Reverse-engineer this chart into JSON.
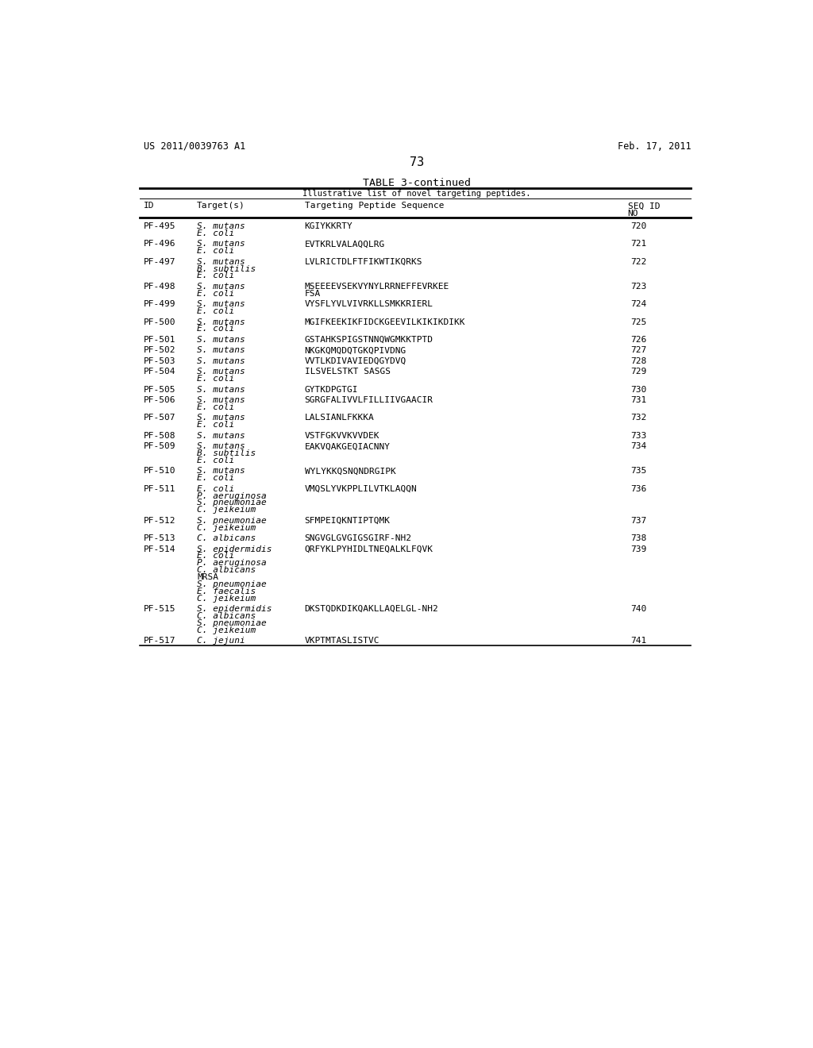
{
  "header_left": "US 2011/0039763 A1",
  "header_right": "Feb. 17, 2011",
  "page_number": "73",
  "table_title": "TABLE 3-continued",
  "table_subtitle": "Illustrative list of novel targeting peptides.",
  "rows": [
    {
      "id": "PF-495",
      "targets": [
        "S. mutans",
        "E. coli"
      ],
      "sequence": [
        "KGIYKKRTY"
      ],
      "seq_id": "720"
    },
    {
      "id": "PF-496",
      "targets": [
        "S. mutans",
        "E. coli"
      ],
      "sequence": [
        "EVTKRLVALAQQLRG"
      ],
      "seq_id": "721"
    },
    {
      "id": "PF-497",
      "targets": [
        "S. mutans",
        "B. subtilis",
        "E. coli"
      ],
      "sequence": [
        "LVLRICTDLFTFIKWTIKQRKS"
      ],
      "seq_id": "722"
    },
    {
      "id": "PF-498",
      "targets": [
        "S. mutans",
        "E. coli"
      ],
      "sequence": [
        "MSEEEEVSEKVYNYLRRNEFFEVRKEE",
        "FSA"
      ],
      "seq_id": "723"
    },
    {
      "id": "PF-499",
      "targets": [
        "S. mutans",
        "E. coli"
      ],
      "sequence": [
        "VYSFLYVLVIVRKLLSMKKRIERL"
      ],
      "seq_id": "724"
    },
    {
      "id": "PF-500",
      "targets": [
        "S. mutans",
        "E. coli"
      ],
      "sequence": [
        "MGIFKEEKIKFIDCKGEEVILKIKIKDIKK"
      ],
      "seq_id": "725"
    },
    {
      "id": "PF-501",
      "targets": [
        "S. mutans"
      ],
      "sequence": [
        "GSTAHKSPIGSTNNQWGMKKTPTD"
      ],
      "seq_id": "726"
    },
    {
      "id": "PF-502",
      "targets": [
        "S. mutans"
      ],
      "sequence": [
        "NKGKQMQDQTGKQPIVDNG"
      ],
      "seq_id": "727"
    },
    {
      "id": "PF-503",
      "targets": [
        "S. mutans"
      ],
      "sequence": [
        "VVTLKDIVAVIEDQGYDVQ"
      ],
      "seq_id": "728"
    },
    {
      "id": "PF-504",
      "targets": [
        "S. mutans",
        "E. coli"
      ],
      "sequence": [
        "ILSVELSTKT SASGS"
      ],
      "seq_id": "729"
    },
    {
      "id": "PF-505",
      "targets": [
        "S. mutans"
      ],
      "sequence": [
        "GYTKDPGTGI"
      ],
      "seq_id": "730"
    },
    {
      "id": "PF-506",
      "targets": [
        "S. mutans",
        "E. coli"
      ],
      "sequence": [
        "SGRGFALIVVLFILLIIVGAACIR"
      ],
      "seq_id": "731"
    },
    {
      "id": "PF-507",
      "targets": [
        "S. mutans",
        "E. coli"
      ],
      "sequence": [
        "LALSIANLFKKKA"
      ],
      "seq_id": "732"
    },
    {
      "id": "PF-508",
      "targets": [
        "S. mutans"
      ],
      "sequence": [
        "VSTFGKVVKVVDEK"
      ],
      "seq_id": "733"
    },
    {
      "id": "PF-509",
      "targets": [
        "S. mutans",
        "B. subtilis",
        "E. coli"
      ],
      "sequence": [
        "EAKVQAKGEQIACNNY"
      ],
      "seq_id": "734"
    },
    {
      "id": "PF-510",
      "targets": [
        "S. mutans",
        "E. coli"
      ],
      "sequence": [
        "WYLYKKQSNQNDRGIPK"
      ],
      "seq_id": "735"
    },
    {
      "id": "PF-511",
      "targets": [
        "E. coli",
        "P. aeruginosa",
        "S. pneumoniae",
        "C. jeikeium"
      ],
      "sequence": [
        "VMQSLYVKPPLILVTKLAQQN"
      ],
      "seq_id": "736"
    },
    {
      "id": "PF-512",
      "targets": [
        "S. pneumoniae",
        "C. jeikeium"
      ],
      "sequence": [
        "SFMPEIQKNTIPTQMK"
      ],
      "seq_id": "737"
    },
    {
      "id": "PF-513",
      "targets": [
        "C. albicans"
      ],
      "sequence": [
        "SNGVGLGVGIGSGIRF-NH2"
      ],
      "seq_id": "738"
    },
    {
      "id": "PF-514",
      "targets": [
        "S. epidermidis",
        "E. coli",
        "P. aeruginosa",
        "C. albicans",
        "MRSA",
        "S. pneumoniae",
        "E. faecalis",
        "C. jeikeium"
      ],
      "sequence": [
        "QRFYKLPYHIDLTNEQALKLFQVK"
      ],
      "seq_id": "739"
    },
    {
      "id": "PF-515",
      "targets": [
        "S. epidermidis",
        "C. albicans",
        "S. pneumoniae",
        "C. jeikeium"
      ],
      "sequence": [
        "DKSTQDKDIKQAKLLAQELGL-NH2"
      ],
      "seq_id": "740"
    },
    {
      "id": "PF-517",
      "targets": [
        "C. jejuni"
      ],
      "sequence": [
        "VKPTMTASLISTVC"
      ],
      "seq_id": "741"
    }
  ],
  "non_italic": [
    "MRSA"
  ],
  "background_color": "#ffffff",
  "text_color": "#000000"
}
